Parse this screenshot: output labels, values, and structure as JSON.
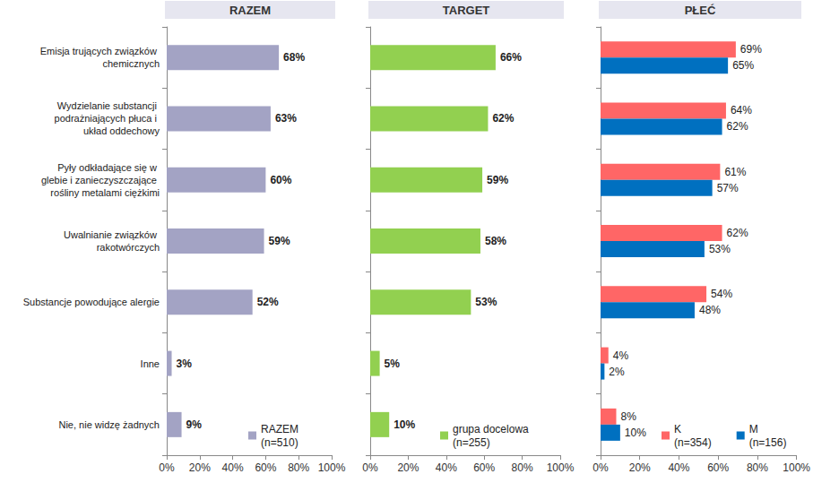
{
  "chart_data": [
    {
      "type": "bar",
      "title": "RAZEM",
      "orientation": "horizontal",
      "data_labels": true,
      "grid": false,
      "categories": [
        "Emisja trujących związków chemicznych",
        "Wydzielanie substancji podrażniających płuca i układ oddechowy",
        "Pyły odkładające się w glebie i zanieczyszczające rośliny metalami ciężkimi",
        "Uwalnianie związków rakotwórczych",
        "Substancje powodujące alergie",
        "Inne",
        "Nie, nie widzę żadnych"
      ],
      "series": [
        {
          "name": "RAZEM (n=510)",
          "color": "#a3a3c4",
          "values": [
            68,
            63,
            60,
            59,
            52,
            3,
            9
          ],
          "value_labels": [
            "68%",
            "63%",
            "60%",
            "59%",
            "52%",
            "3%",
            "9%"
          ]
        }
      ],
      "xlim": [
        0,
        100
      ],
      "xticks": [
        {
          "value": 0,
          "label": "0%"
        },
        {
          "value": 20,
          "label": "20%"
        },
        {
          "value": 40,
          "label": "40%"
        },
        {
          "value": 60,
          "label": "60%"
        },
        {
          "value": 80,
          "label": "80%"
        },
        {
          "value": 100,
          "label": "100%"
        }
      ]
    },
    {
      "type": "bar",
      "title": "TARGET",
      "orientation": "horizontal",
      "data_labels": true,
      "grid": false,
      "tick_labels": "x",
      "categories": [
        "Emisja trujących związków chemicznych",
        "Wydzielanie substancji podrażniających płuca i układ oddechowy",
        "Pyły odkładające się w glebie i zanieczyszczające rośliny metalami ciężkimi",
        "Uwalnianie związków rakotwórczych",
        "Substancje powodujące alergie",
        "Inne",
        "Nie, nie widzę żadnych"
      ],
      "series": [
        {
          "name": "grupa docelowa (n=255)",
          "color": "#92d050",
          "values": [
            66,
            62,
            59,
            58,
            53,
            5,
            10
          ],
          "value_labels": [
            "66%",
            "62%",
            "59%",
            "58%",
            "53%",
            "5%",
            "10%"
          ]
        }
      ],
      "xlim": [
        0,
        100
      ],
      "xticks": [
        {
          "value": 0,
          "label": "0%"
        },
        {
          "value": 20,
          "label": "20%"
        },
        {
          "value": 40,
          "label": "40%"
        },
        {
          "value": 60,
          "label": "60%"
        },
        {
          "value": 80,
          "label": "80%"
        },
        {
          "value": 100,
          "label": "100%"
        }
      ]
    },
    {
      "type": "bar",
      "title": "PŁEĆ",
      "orientation": "horizontal",
      "data_labels": true,
      "grid": false,
      "tick_labels": "x",
      "categories": [
        "Emisja trujących związków chemicznych",
        "Wydzielanie substancji podrażniających płuca i układ oddechowy",
        "Pyły odkładające się w glebie i zanieczyszczające rośliny metalami ciężkimi",
        "Uwalnianie związków rakotwórczych",
        "Substancje powodujące alergie",
        "Inne",
        "Nie, nie widzę żadnych"
      ],
      "series": [
        {
          "name": "K (n=354)",
          "color": "#ff6666",
          "values": [
            69,
            64,
            61,
            62,
            54,
            4,
            8
          ],
          "value_labels": [
            "69%",
            "64%",
            "61%",
            "62%",
            "54%",
            "4%",
            "8%"
          ]
        },
        {
          "name": "M (n=156)",
          "color": "#0070c0",
          "values": [
            65,
            62,
            57,
            53,
            48,
            2,
            10
          ],
          "value_labels": [
            "65%",
            "62%",
            "57%",
            "53%",
            "48%",
            "2%",
            "10%"
          ]
        }
      ],
      "xlim": [
        0,
        100
      ],
      "xticks": [
        {
          "value": 0,
          "label": "0%"
        },
        {
          "value": 20,
          "label": "20%"
        },
        {
          "value": 40,
          "label": "40%"
        },
        {
          "value": 60,
          "label": "60%"
        },
        {
          "value": 80,
          "label": "80%"
        },
        {
          "value": 100,
          "label": "100%"
        }
      ]
    }
  ]
}
